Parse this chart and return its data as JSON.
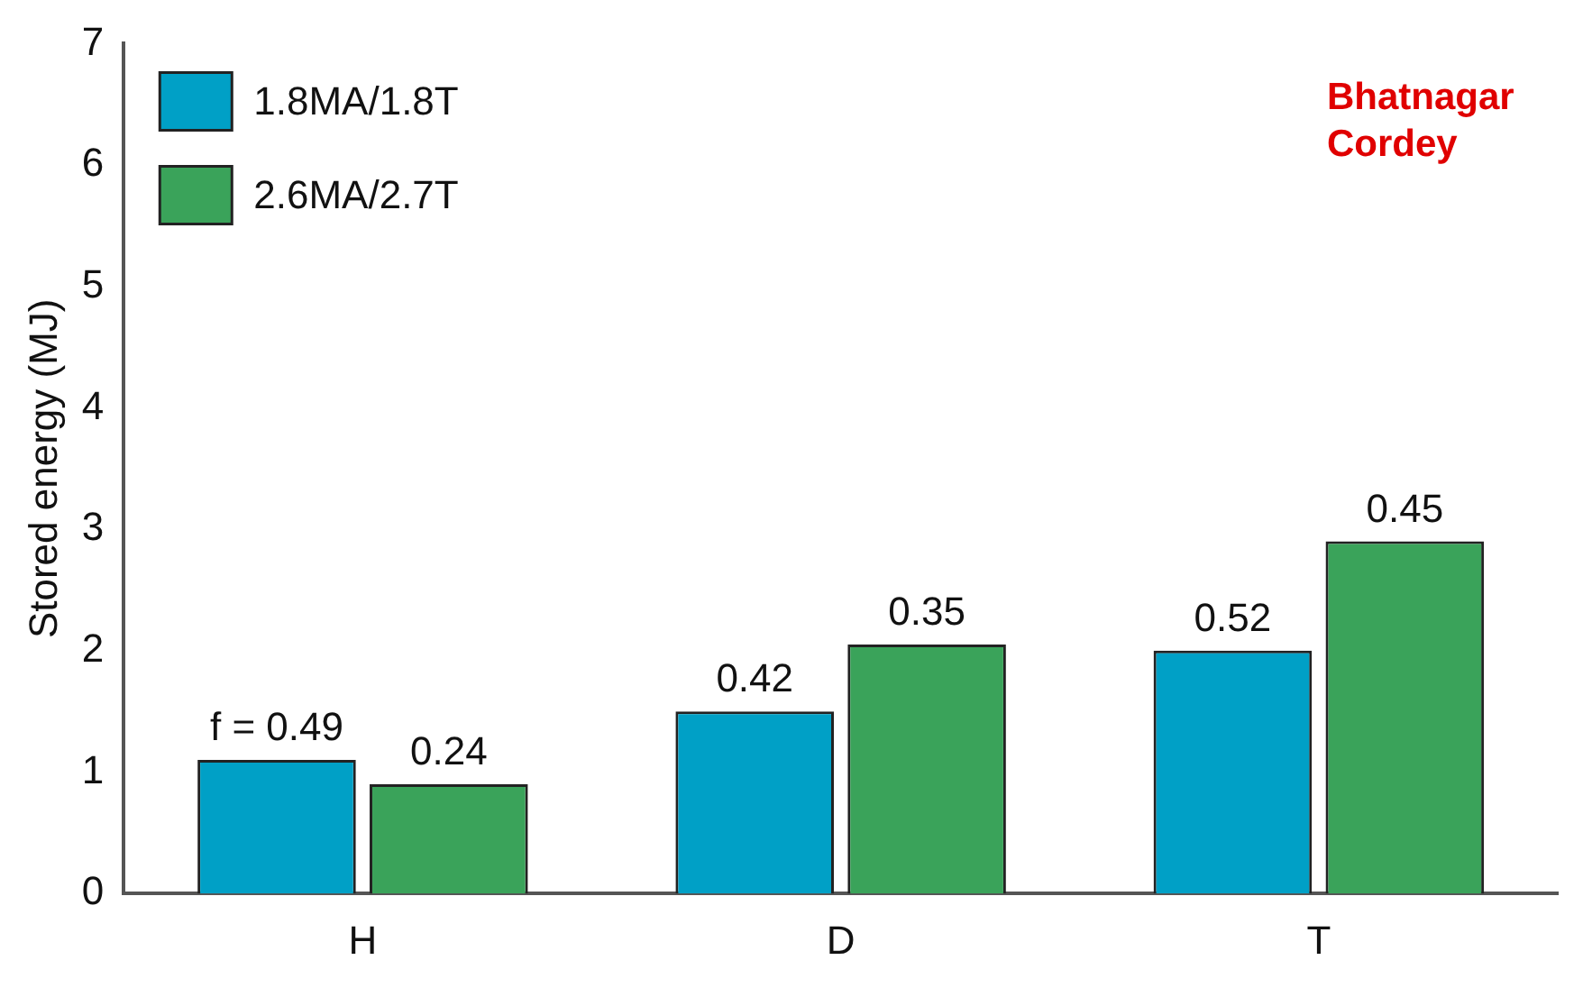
{
  "chart_data": {
    "type": "bar",
    "ylabel": "Stored energy (MJ)",
    "categories": [
      "H",
      "D",
      "T"
    ],
    "series": [
      {
        "name": "1.8MA/1.8T",
        "color": "#00a0c6",
        "values": [
          1.1,
          1.5,
          2.0
        ]
      },
      {
        "name": "2.6MA/2.7T",
        "color": "#3aa35a",
        "values": [
          0.9,
          2.05,
          2.9
        ]
      }
    ],
    "ylim": [
      0,
      7
    ],
    "yticks": [
      0,
      1,
      2,
      3,
      4,
      5,
      6,
      7
    ],
    "grid": false,
    "legend": "top left",
    "annotations": [
      "f = 0.49",
      "0.24",
      "0.42",
      "0.35",
      "0.52",
      "0.45",
      "Bhatnagar\nCordey"
    ]
  }
}
